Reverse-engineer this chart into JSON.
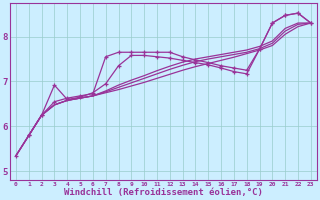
{
  "bg_color": "#cceeff",
  "line_color": "#993399",
  "grid_color": "#99cccc",
  "xlabel": "Windchill (Refroidissement éolien,°C)",
  "xlabel_color": "#993399",
  "xlabel_fontsize": 6.5,
  "ylabel_ticks": [
    5,
    6,
    7,
    8
  ],
  "xticks": [
    0,
    1,
    2,
    3,
    4,
    5,
    6,
    7,
    8,
    9,
    10,
    11,
    12,
    13,
    14,
    15,
    16,
    17,
    18,
    19,
    20,
    21,
    22,
    23
  ],
  "xlim": [
    -0.5,
    23.5
  ],
  "ylim": [
    4.8,
    8.75
  ],
  "lines": [
    {
      "x": [
        0,
        1,
        2,
        3,
        4,
        5,
        6,
        7,
        8,
        9,
        10,
        11,
        12,
        13,
        14,
        15,
        16,
        17,
        18,
        19,
        20,
        21,
        22,
        23
      ],
      "y": [
        5.35,
        5.8,
        6.25,
        6.55,
        6.63,
        6.68,
        6.73,
        7.55,
        7.65,
        7.65,
        7.65,
        7.65,
        7.65,
        7.55,
        7.48,
        7.42,
        7.35,
        7.3,
        7.25,
        7.72,
        8.3,
        8.47,
        8.52,
        8.3
      ],
      "marker": true,
      "lw": 0.9
    },
    {
      "x": [
        0,
        1,
        2,
        3,
        4,
        5,
        6,
        7,
        8,
        9,
        10,
        11,
        12,
        13,
        14,
        15,
        16,
        17,
        18,
        19,
        20,
        21,
        22,
        23
      ],
      "y": [
        5.35,
        5.8,
        6.25,
        6.48,
        6.58,
        6.63,
        6.68,
        6.75,
        6.82,
        6.9,
        6.98,
        7.07,
        7.16,
        7.25,
        7.33,
        7.4,
        7.47,
        7.54,
        7.62,
        7.7,
        7.8,
        8.05,
        8.22,
        8.3
      ],
      "marker": false,
      "lw": 0.9
    },
    {
      "x": [
        0,
        1,
        2,
        3,
        4,
        5,
        6,
        7,
        8,
        9,
        10,
        11,
        12,
        13,
        14,
        15,
        16,
        17,
        18,
        19,
        20,
        21,
        22,
        23
      ],
      "y": [
        5.35,
        5.8,
        6.25,
        6.48,
        6.58,
        6.63,
        6.68,
        6.77,
        6.87,
        6.97,
        7.07,
        7.17,
        7.27,
        7.36,
        7.44,
        7.5,
        7.55,
        7.6,
        7.65,
        7.73,
        7.85,
        8.12,
        8.27,
        8.3
      ],
      "marker": false,
      "lw": 0.9
    },
    {
      "x": [
        0,
        1,
        2,
        3,
        4,
        5,
        6,
        7,
        8,
        9,
        10,
        11,
        12,
        13,
        14,
        15,
        16,
        17,
        18,
        19,
        20,
        21,
        22,
        23
      ],
      "y": [
        5.35,
        5.8,
        6.25,
        6.48,
        6.58,
        6.63,
        6.68,
        6.79,
        6.92,
        7.03,
        7.13,
        7.24,
        7.34,
        7.43,
        7.5,
        7.55,
        7.6,
        7.65,
        7.7,
        7.78,
        7.9,
        8.18,
        8.3,
        8.3
      ],
      "marker": false,
      "lw": 0.9
    },
    {
      "x": [
        1,
        2,
        3,
        4,
        5,
        6,
        7,
        8,
        9,
        10,
        11,
        12,
        13,
        14,
        15,
        16,
        17,
        18,
        19,
        20,
        21,
        22,
        23
      ],
      "y": [
        5.8,
        6.25,
        6.92,
        6.6,
        6.65,
        6.75,
        6.95,
        7.35,
        7.58,
        7.58,
        7.55,
        7.52,
        7.47,
        7.42,
        7.37,
        7.3,
        7.22,
        7.17,
        7.72,
        8.3,
        8.47,
        8.52,
        8.3
      ],
      "marker": true,
      "lw": 0.9
    }
  ]
}
